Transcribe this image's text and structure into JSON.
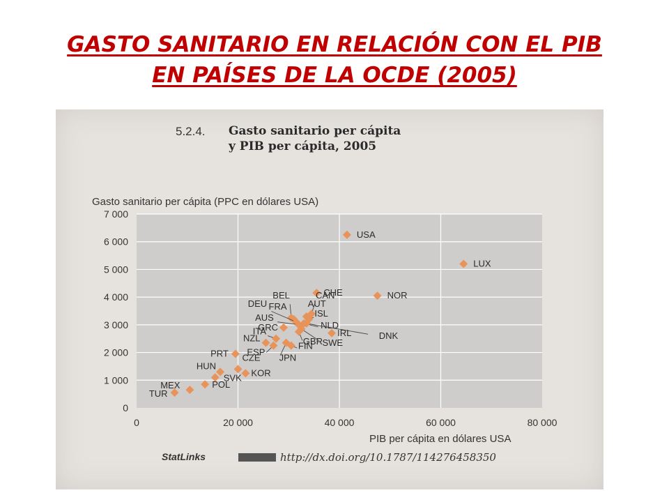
{
  "slide": {
    "title_line1": "GASTO SANITARIO EN RELACIÓN CON EL PIB",
    "title_line2": "EN PAÍSES DE LA OCDE (2005)"
  },
  "figure": {
    "number": "5.2.4.",
    "title_line1": "Gasto sanitario per cápita",
    "title_line2": "y PIB per cápita, 2005",
    "statlinks_label": "StatLinks",
    "url": "http://dx.doi.org/10.1787/114276458350"
  },
  "chart_data": {
    "type": "scatter",
    "xlabel": "PIB per cápita en dólares USA",
    "ylabel": "Gasto sanitario per cápita (PPC en dólares USA)",
    "xlim": [
      0,
      80000
    ],
    "ylim": [
      0,
      7000
    ],
    "x_ticks": [
      0,
      20000,
      40000,
      60000,
      80000
    ],
    "x_tick_labels": [
      "0",
      "20 000",
      "40 000",
      "60 000",
      "80 000"
    ],
    "y_ticks": [
      0,
      1000,
      2000,
      3000,
      4000,
      5000,
      6000,
      7000
    ],
    "y_tick_labels": [
      "0",
      "1 000",
      "2 000",
      "3 000",
      "4 000",
      "5 000",
      "6 000",
      "7 000"
    ],
    "grid": true,
    "marker_color": "#e8935a",
    "points": [
      {
        "label": "USA",
        "x": 41500,
        "y": 6250
      },
      {
        "label": "LUX",
        "x": 64500,
        "y": 5200
      },
      {
        "label": "NOR",
        "x": 47500,
        "y": 4050
      },
      {
        "label": "CHE",
        "x": 35500,
        "y": 4150
      },
      {
        "label": "BEL",
        "x": 30500,
        "y": 3250
      },
      {
        "label": "AUT",
        "x": 33500,
        "y": 3300
      },
      {
        "label": "CAN",
        "x": 34500,
        "y": 3400
      },
      {
        "label": "FRA",
        "x": 31000,
        "y": 3200
      },
      {
        "label": "DEU",
        "x": 31500,
        "y": 3100
      },
      {
        "label": "ISL",
        "x": 34000,
        "y": 3200
      },
      {
        "label": "NLD",
        "x": 33000,
        "y": 3050
      },
      {
        "label": "AUS",
        "x": 32000,
        "y": 3000
      },
      {
        "label": "DNK",
        "x": 33500,
        "y": 3050
      },
      {
        "label": "GRC",
        "x": 29000,
        "y": 2900
      },
      {
        "label": "IRL",
        "x": 38500,
        "y": 2700
      },
      {
        "label": "GBR",
        "x": 32000,
        "y": 2750
      },
      {
        "label": "SWE",
        "x": 32500,
        "y": 2850
      },
      {
        "label": "ITA",
        "x": 27500,
        "y": 2500
      },
      {
        "label": "FIN",
        "x": 30500,
        "y": 2250
      },
      {
        "label": "NZL",
        "x": 25500,
        "y": 2350
      },
      {
        "label": "ESP",
        "x": 27000,
        "y": 2250
      },
      {
        "label": "JPN",
        "x": 29500,
        "y": 2350
      },
      {
        "label": "PRT",
        "x": 19500,
        "y": 1950
      },
      {
        "label": "CZE",
        "x": 20000,
        "y": 1400
      },
      {
        "label": "KOR",
        "x": 21500,
        "y": 1250
      },
      {
        "label": "HUN",
        "x": 16500,
        "y": 1300
      },
      {
        "label": "SVK",
        "x": 15500,
        "y": 1100
      },
      {
        "label": "POL",
        "x": 13500,
        "y": 850
      },
      {
        "label": "MEX",
        "x": 10500,
        "y": 650
      },
      {
        "label": "TUR",
        "x": 7500,
        "y": 550
      }
    ]
  }
}
